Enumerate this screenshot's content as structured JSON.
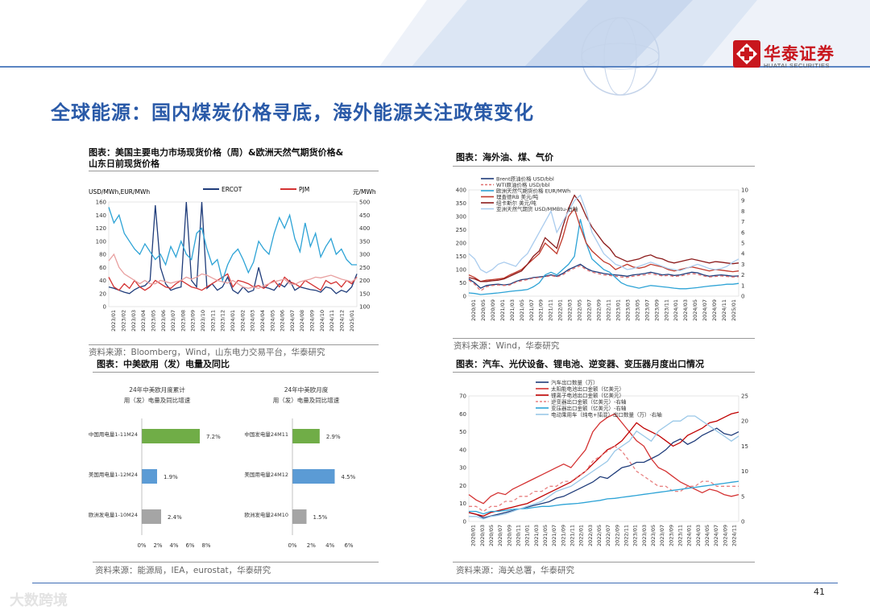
{
  "header": {
    "logo_text": "华泰证券",
    "logo_sub": "HUATAI SECURITIES",
    "page_number": "41",
    "watermark": "大数跨境"
  },
  "page_title": "全球能源：国内煤炭价格寻底，海外能源关注政策变化",
  "panel_tl": {
    "title_line1": "图表：美国主要电力市场现货价格（周）&欧洲天然气期货价格&",
    "title_line2": "山东日前现货价格",
    "left_unit": "USD/MWh,EUR/MWh",
    "right_unit": "元/MWh",
    "legend": [
      "ERCOT",
      "PJM"
    ],
    "left_ticks": [
      "160",
      "140",
      "120",
      "100",
      "80",
      "60",
      "40",
      "20",
      "0"
    ],
    "right_ticks": [
      "500",
      "450",
      "400",
      "350",
      "300",
      "250",
      "200",
      "150",
      "100"
    ],
    "x_ticks": [
      "2023/01",
      "2023/02",
      "2023/03",
      "2023/04",
      "2023/05",
      "2023/06",
      "2023/07",
      "2023/08",
      "2023/09",
      "2023/10",
      "2023/11",
      "2023/12",
      "2024/01",
      "2024/02",
      "2024/03",
      "2024/04",
      "2024/05",
      "2024/06",
      "2024/07",
      "2024/08",
      "2024/09",
      "2024/10",
      "2024/11",
      "2024/12",
      "2025/01"
    ],
    "source": "资料来源：Bloomberg，Wind，山东电力交易平台，华泰研究"
  },
  "panel_tr": {
    "title": "图表：海外油、煤、气价",
    "legend": [
      "Brent原油价格 USD/bbl",
      "WTI原油价格 USD/bbl",
      "欧洲天然气期货价格 EUR/MWh",
      "理查德RB 美元/吨",
      "纽卡斯尔 美元/吨",
      "亚洲天然气期货 USD/MMBtu-右轴"
    ],
    "left_ticks": [
      "400",
      "350",
      "300",
      "250",
      "200",
      "150",
      "100",
      "50",
      "0"
    ],
    "right_ticks": [
      "10",
      "9",
      "8",
      "7",
      "6",
      "5",
      "4",
      "3",
      "2",
      "1",
      "0"
    ],
    "x_ticks": [
      "2020/01",
      "2020/05",
      "2020/09",
      "2021/01",
      "2021/03",
      "2021/05",
      "2021/07",
      "2021/09",
      "2021/11",
      "2022/01",
      "2022/03",
      "2022/05",
      "2022/07",
      "2022/09",
      "2022/11",
      "2023/01",
      "2023/03",
      "2023/05",
      "2023/07",
      "2023/09",
      "2023/11",
      "2024/01",
      "2024/03",
      "2024/05",
      "2024/07",
      "2024/09",
      "2024/11",
      "2025/01"
    ],
    "source": "资料来源：Wind，华泰研究"
  },
  "panel_bl": {
    "title": "图表：中美欧用（发）电量及同比",
    "left_chart_title_1": "24年中美欧月度累计",
    "left_chart_title_2": "用（发）电量及同比增速",
    "right_chart_title_1": "24年中美欧月度",
    "right_chart_title_2": "用（发）电量及同比增速",
    "source": "资料来源：能源局，IEA，eurostat，华泰研究"
  },
  "panel_br": {
    "title": "图表：汽车、光伏设备、锂电池、逆变器、变压器月度出口情况",
    "legend": [
      "汽车出口数量（万）",
      "太阳能电池出口金额（亿美元）",
      "锂离子电池出口金额（亿美元）",
      "逆变器出口金额（亿美元）-右轴",
      "变压器出口金额（亿美元）-右轴",
      "电动乘用车（纯电+插混）出口数量（万）-右轴"
    ],
    "left_ticks": [
      "70",
      "60",
      "50",
      "40",
      "30",
      "20",
      "10",
      "0"
    ],
    "right_ticks": [
      "25",
      "20",
      "15",
      "10",
      "5",
      "0"
    ],
    "x_ticks": [
      "2020/01",
      "2020/03",
      "2020/05",
      "2020/07",
      "2020/09",
      "2020/11",
      "2021/01",
      "2021/03",
      "2021/05",
      "2021/07",
      "2021/09",
      "2021/11",
      "2022/01",
      "2022/03",
      "2022/05",
      "2022/07",
      "2022/09",
      "2022/11",
      "2023/01",
      "2023/03",
      "2023/05",
      "2023/07",
      "2023/09",
      "2023/11",
      "2024/01",
      "2024/03",
      "2024/05",
      "2024/07",
      "2024/09",
      "2024/11"
    ],
    "source": "资料来源：海关总署，华泰研究"
  },
  "chart_data": [
    {
      "type": "line",
      "title": "美国主要电力市场现货价格（周）&欧洲天然气期货价格&山东日前现货价格",
      "ylabel": "USD/MWh,EUR/MWh",
      "y2label": "元/MWh",
      "ylim": [
        0,
        160
      ],
      "y2lim": [
        100,
        500
      ],
      "series": [
        {
          "name": "ERCOT",
          "axis": "left",
          "color": "#1f3c7a",
          "values": [
            30,
            28,
            25,
            22,
            20,
            26,
            30,
            32,
            40,
            155,
            60,
            35,
            25,
            28,
            30,
            160,
            40,
            30,
            160,
            28,
            35,
            25,
            30,
            45,
            25,
            20,
            30,
            22,
            25,
            60,
            30,
            28,
            25,
            35,
            30,
            40,
            25,
            30,
            28,
            26,
            25,
            22,
            30,
            28,
            20,
            25,
            22,
            30,
            50
          ]
        },
        {
          "name": "PJM",
          "axis": "left",
          "color": "#d43232",
          "values": [
            45,
            30,
            25,
            35,
            28,
            40,
            30,
            25,
            30,
            40,
            35,
            30,
            28,
            35,
            40,
            35,
            30,
            28,
            25,
            30,
            35,
            40,
            45,
            50,
            30,
            40,
            38,
            35,
            30,
            32,
            28,
            35,
            40,
            30,
            45,
            38,
            35,
            30,
            40,
            35,
            30,
            25,
            40,
            35,
            38,
            30,
            40,
            35,
            45
          ]
        },
        {
          "name": "欧洲天然气",
          "axis": "left",
          "color": "#e8a0a0",
          "values": [
            70,
            80,
            60,
            50,
            45,
            40,
            35,
            40,
            35,
            35,
            40,
            38,
            36,
            38,
            40,
            45,
            42,
            45,
            50,
            48,
            44,
            40,
            38,
            36,
            40,
            35,
            30,
            28,
            30,
            28,
            32,
            35,
            38,
            40,
            42,
            35,
            34,
            38,
            40,
            42,
            45,
            44,
            46,
            48,
            45,
            42,
            40,
            38,
            44
          ]
        },
        {
          "name": "山东日前现货",
          "axis": "right",
          "color": "#2da3d6",
          "values": [
            480,
            420,
            450,
            380,
            350,
            320,
            300,
            340,
            310,
            280,
            300,
            260,
            330,
            290,
            350,
            300,
            280,
            380,
            400,
            320,
            260,
            280,
            200,
            260,
            300,
            320,
            280,
            230,
            270,
            350,
            320,
            300,
            380,
            440,
            400,
            450,
            360,
            310,
            420,
            330,
            380,
            290,
            330,
            360,
            300,
            320,
            280,
            260,
            260
          ]
        }
      ]
    },
    {
      "type": "line",
      "title": "海外油、煤、气价",
      "ylim": [
        0,
        400
      ],
      "y2lim": [
        0,
        10
      ],
      "series": [
        {
          "name": "Brent原油价格 USD/bbl",
          "axis": "left",
          "color": "#1f3c7a",
          "values": [
            65,
            50,
            30,
            40,
            43,
            45,
            42,
            45,
            55,
            62,
            65,
            70,
            72,
            75,
            80,
            75,
            85,
            100,
            110,
            120,
            105,
            95,
            90,
            85,
            82,
            80,
            78,
            75,
            80,
            82,
            85,
            90,
            85,
            80,
            82,
            78,
            80,
            85,
            90,
            88,
            80,
            75,
            78,
            80,
            78,
            75,
            76
          ]
        },
        {
          "name": "WTI原油价格 USD/bbl",
          "axis": "left",
          "color": "#e07070",
          "dash": true,
          "values": [
            60,
            45,
            20,
            35,
            40,
            42,
            40,
            42,
            52,
            58,
            62,
            68,
            70,
            72,
            78,
            72,
            80,
            95,
            105,
            115,
            100,
            90,
            85,
            80,
            78,
            75,
            72,
            70,
            75,
            78,
            80,
            85,
            80,
            76,
            78,
            74,
            76,
            80,
            85,
            82,
            76,
            72,
            74,
            76,
            74,
            72,
            73
          ]
        },
        {
          "name": "欧洲天然气期货价格 EUR/MWh",
          "axis": "left",
          "color": "#2da3d6",
          "values": [
            12,
            10,
            6,
            8,
            10,
            12,
            15,
            18,
            20,
            22,
            25,
            35,
            50,
            80,
            90,
            80,
            100,
            120,
            150,
            290,
            200,
            140,
            120,
            100,
            90,
            70,
            50,
            40,
            35,
            30,
            35,
            40,
            38,
            35,
            33,
            30,
            28,
            28,
            30,
            32,
            35,
            38,
            40,
            42,
            45,
            45,
            48
          ]
        },
        {
          "name": "理查德RB 美元/吨",
          "axis": "left",
          "color": "#c0392b",
          "values": [
            80,
            70,
            55,
            60,
            62,
            65,
            68,
            80,
            90,
            100,
            120,
            140,
            160,
            200,
            180,
            160,
            220,
            300,
            330,
            260,
            200,
            170,
            150,
            130,
            120,
            100,
            110,
            120,
            110,
            105,
            110,
            120,
            115,
            110,
            100,
            95,
            100,
            105,
            110,
            105,
            100,
            95,
            100,
            98,
            95,
            92,
            95
          ]
        },
        {
          "name": "纽卡斯尔 美元/吨",
          "axis": "left",
          "color": "#8b1a1a",
          "values": [
            70,
            65,
            55,
            55,
            58,
            60,
            65,
            75,
            85,
            95,
            120,
            150,
            170,
            220,
            200,
            180,
            260,
            330,
            380,
            350,
            300,
            260,
            230,
            200,
            180,
            150,
            140,
            130,
            135,
            140,
            150,
            155,
            145,
            140,
            130,
            125,
            130,
            135,
            140,
            135,
            130,
            125,
            130,
            128,
            125,
            122,
            125
          ]
        },
        {
          "name": "亚洲天然气期货 USD/MMBtu-右轴",
          "axis": "right",
          "color": "#aaccee",
          "values": [
            4,
            3.5,
            2.5,
            2.2,
            2.5,
            3,
            3.2,
            3,
            2.8,
            3.5,
            4,
            5,
            6,
            7,
            8,
            6,
            7,
            8,
            9,
            9.5,
            8,
            6,
            5,
            4,
            3.5,
            3,
            2.8,
            2.5,
            2.6,
            2.8,
            3,
            3.2,
            3,
            2.8,
            2.6,
            2.5,
            2.4,
            2.6,
            2.8,
            3,
            2.8,
            2.6,
            2.5,
            2.6,
            2.8,
            3.2,
            3.5
          ]
        }
      ]
    },
    {
      "type": "bar",
      "title": "24年中美欧月度累计用（发）电量及同比增速",
      "orientation": "horizontal",
      "categories": [
        "中国用电量1-11M24",
        "美国用电量1-12M24",
        "欧洲发电量1-10M24"
      ],
      "values": [
        7.2,
        1.9,
        2.4
      ],
      "labels": [
        "7.2%",
        "1.9%",
        "2.4%"
      ],
      "colors": [
        "#70ad47",
        "#5b9bd5",
        "#a5a5a5"
      ],
      "x_ticks": [
        "0%",
        "2%",
        "4%",
        "6%",
        "8%"
      ],
      "xlim": [
        0,
        8
      ]
    },
    {
      "type": "bar",
      "title": "24年中美欧月度用（发）电量及同比增速",
      "orientation": "horizontal",
      "categories": [
        "中国发电量24M11",
        "美国用电量24M12",
        "欧洲发电量24M10"
      ],
      "values": [
        2.9,
        4.5,
        1.5
      ],
      "labels": [
        "2.9%",
        "4.5%",
        "1.5%"
      ],
      "colors": [
        "#70ad47",
        "#5b9bd5",
        "#a5a5a5"
      ],
      "x_ticks": [
        "0%",
        "2%",
        "4%",
        "6%"
      ],
      "xlim": [
        0,
        6
      ]
    },
    {
      "type": "line",
      "title": "汽车、光伏设备、锂电池、逆变器、变压器月度出口情况",
      "ylim": [
        0,
        70
      ],
      "y2lim": [
        0,
        25
      ],
      "series": [
        {
          "name": "汽车出口数量（万）",
          "axis": "left",
          "color": "#1f3c7a",
          "values": [
            5,
            4,
            2,
            3,
            4,
            5,
            6,
            7,
            8,
            9,
            10,
            11,
            13,
            14,
            16,
            18,
            20,
            22,
            25,
            24,
            27,
            30,
            31,
            33,
            33,
            35,
            37,
            40,
            44,
            46,
            43,
            45,
            48,
            50,
            52,
            49,
            48,
            50
          ]
        },
        {
          "name": "太阳能电池出口金额（亿美元）",
          "axis": "left",
          "color": "#d43232",
          "values": [
            15,
            12,
            10,
            14,
            16,
            15,
            18,
            20,
            22,
            24,
            26,
            28,
            30,
            32,
            30,
            35,
            40,
            50,
            55,
            58,
            60,
            55,
            50,
            45,
            42,
            35,
            30,
            28,
            25,
            22,
            20,
            18,
            16,
            18,
            17,
            15,
            14,
            15
          ]
        },
        {
          "name": "锂离子电池出口金额（亿美元）",
          "axis": "left",
          "color": "#c00000",
          "values": [
            5,
            4,
            3,
            5,
            6,
            7,
            8,
            9,
            10,
            12,
            14,
            16,
            18,
            20,
            22,
            25,
            28,
            32,
            36,
            40,
            42,
            45,
            50,
            55,
            52,
            50,
            48,
            45,
            42,
            44,
            48,
            50,
            52,
            55,
            56,
            58,
            60,
            61
          ]
        },
        {
          "name": "逆变器出口金额（亿美元）-右轴",
          "axis": "right",
          "color": "#e88080",
          "dash": true,
          "values": [
            3,
            3,
            2,
            3,
            3,
            4,
            4,
            5,
            5,
            6,
            6,
            7,
            7,
            8,
            8,
            9,
            10,
            12,
            13,
            14,
            15,
            14,
            12,
            10,
            9,
            8,
            7,
            7,
            6,
            6,
            7,
            7,
            8,
            8,
            7,
            7,
            7,
            7
          ]
        },
        {
          "name": "变压器出口金额（亿美元）-右轴",
          "axis": "right",
          "color": "#2da3d6",
          "values": [
            2,
            2,
            1.5,
            2,
            2,
            2.2,
            2.4,
            2.5,
            2.6,
            2.8,
            3,
            3,
            3.2,
            3.4,
            3.5,
            3.6,
            3.8,
            4,
            4.2,
            4.5,
            4.6,
            4.8,
            5,
            5.2,
            5.4,
            5.6,
            5.8,
            6,
            6.2,
            6.4,
            6.6,
            6.8,
            7,
            7.2,
            7.4,
            7.6,
            7.8,
            8
          ]
        },
        {
          "name": "电动乘用车（纯电+插混）出口数量（万）-右轴",
          "axis": "right",
          "color": "#9ac8e8",
          "values": [
            1,
            1,
            0.5,
            1,
            1.2,
            1.5,
            2,
            2.5,
            3,
            3.5,
            4,
            5,
            6,
            6.5,
            7,
            8,
            9,
            10,
            11,
            12,
            14,
            15,
            16,
            18,
            17,
            16,
            18,
            19,
            20,
            20,
            21,
            21,
            20,
            19,
            18,
            17,
            16,
            17
          ]
        }
      ]
    }
  ]
}
